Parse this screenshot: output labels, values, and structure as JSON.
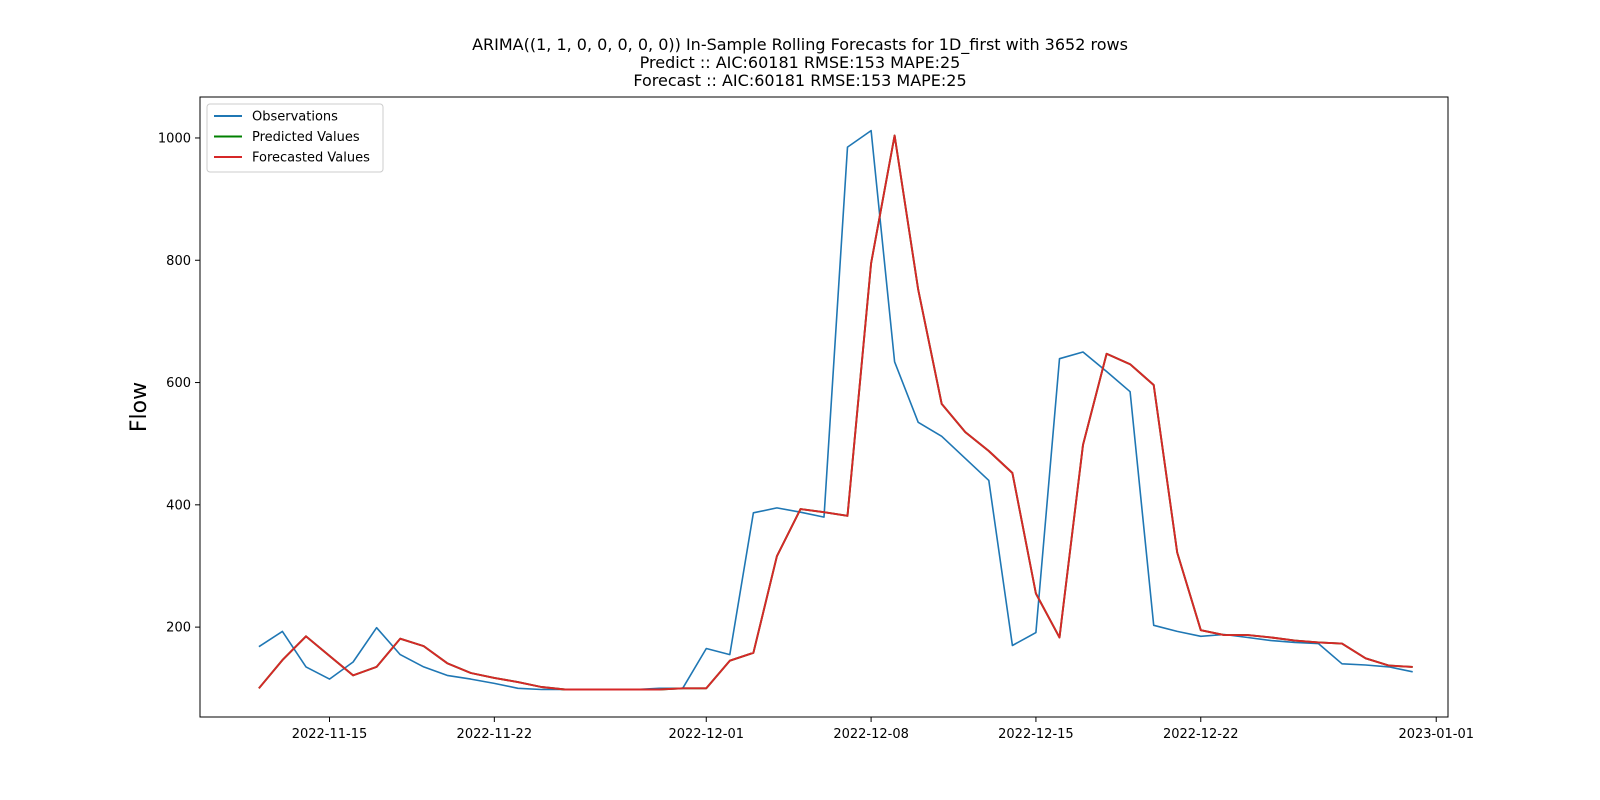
{
  "chart_data": {
    "type": "line",
    "title": "ARIMA((1, 1, 0, 0, 0, 0, 0)) In-Sample Rolling Forecasts for 1D_first with 3652 rows",
    "subtitle_lines": [
      "Predict :: AIC:60181 RMSE:153 MAPE:25",
      "Forecast :: AIC:60181 RMSE:153 MAPE:25"
    ],
    "xlabel": "",
    "ylabel": "Flow",
    "x_start_date": "2022-11-12",
    "x": [
      "2022-11-12",
      "2022-11-13",
      "2022-11-14",
      "2022-11-15",
      "2022-11-16",
      "2022-11-17",
      "2022-11-18",
      "2022-11-19",
      "2022-11-20",
      "2022-11-21",
      "2022-11-22",
      "2022-11-23",
      "2022-11-24",
      "2022-11-25",
      "2022-11-26",
      "2022-11-27",
      "2022-11-28",
      "2022-11-29",
      "2022-11-30",
      "2022-12-01",
      "2022-12-02",
      "2022-12-03",
      "2022-12-04",
      "2022-12-05",
      "2022-12-06",
      "2022-12-07",
      "2022-12-08",
      "2022-12-09",
      "2022-12-10",
      "2022-12-11",
      "2022-12-12",
      "2022-12-13",
      "2022-12-14",
      "2022-12-15",
      "2022-12-16",
      "2022-12-17",
      "2022-12-18",
      "2022-12-19",
      "2022-12-20",
      "2022-12-21",
      "2022-12-22",
      "2022-12-23",
      "2022-12-24",
      "2022-12-25",
      "2022-12-26",
      "2022-12-27",
      "2022-12-28",
      "2022-12-29",
      "2022-12-30",
      "2022-12-31"
    ],
    "xlim": [
      "2022-11-09T12:00",
      "2023-01-01T12:00"
    ],
    "ylim": [
      53,
      1067
    ],
    "x_ticks": [
      "2022-11-15",
      "2022-11-22",
      "2022-12-01",
      "2022-12-08",
      "2022-12-15",
      "2022-12-22",
      "2023-01-01"
    ],
    "y_ticks": [
      200,
      400,
      600,
      800,
      1000
    ],
    "legend_position": "upper-left",
    "series": [
      {
        "name": "Observations",
        "color": "#1f77b4",
        "values": [
          168,
          193,
          135,
          115,
          143,
          199,
          155,
          135,
          121,
          115,
          108,
          100,
          98,
          98,
          98,
          98,
          98,
          100,
          100,
          165,
          155,
          387,
          395,
          388,
          380,
          985,
          1012,
          634,
          535,
          512,
          476,
          440,
          170,
          191,
          639,
          650,
          618,
          585,
          203,
          193,
          185,
          188,
          183,
          178,
          175,
          173,
          140,
          138,
          135,
          127
        ]
      },
      {
        "name": "Predicted Values",
        "color": "#008000",
        "values": [
          100,
          146,
          185,
          153,
          121,
          135,
          181,
          169,
          141,
          125,
          117,
          110,
          102,
          98,
          98,
          98,
          98,
          98,
          100,
          100,
          145,
          158,
          316,
          393,
          388,
          382,
          795,
          1004,
          752,
          565,
          519,
          488,
          452,
          255,
          183,
          498,
          647,
          630,
          596,
          322,
          195,
          187,
          187,
          183,
          178,
          175,
          173,
          149,
          137,
          135
        ]
      },
      {
        "name": "Forecasted Values",
        "color": "#d62728",
        "values": [
          100,
          146,
          185,
          153,
          121,
          135,
          181,
          169,
          141,
          125,
          117,
          110,
          102,
          98,
          98,
          98,
          98,
          98,
          100,
          100,
          145,
          158,
          316,
          393,
          388,
          382,
          795,
          1004,
          752,
          565,
          519,
          488,
          452,
          255,
          183,
          498,
          647,
          630,
          596,
          322,
          195,
          187,
          187,
          183,
          178,
          175,
          173,
          149,
          137,
          135
        ]
      }
    ]
  }
}
